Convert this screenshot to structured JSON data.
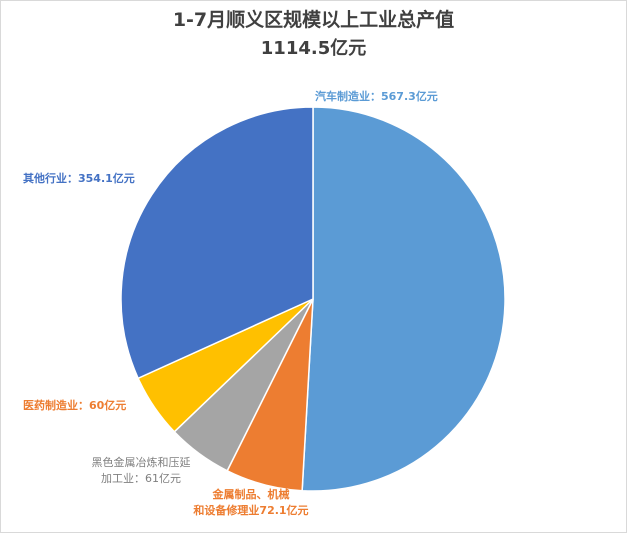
{
  "chart_data": {
    "type": "pie",
    "title": "1-7月顺义区规模以上工业总产值",
    "subtitle": "1114.5亿元",
    "unit": "亿元",
    "slices": [
      {
        "label_line1": "汽车制造业：567.3亿元",
        "label_line2": "",
        "value": 567.3,
        "color": "#5B9BD5",
        "label_color": "#5B9BD5"
      },
      {
        "label_line1": "金属制品、机械",
        "label_line2": "和设备修理业72.1亿元",
        "value": 72.1,
        "color": "#ED7D31",
        "label_color": "#ED7D31"
      },
      {
        "label_line1": "黑色金属冶炼和压延",
        "label_line2": "加工业：61亿元",
        "value": 61,
        "color": "#A5A5A5",
        "label_color": "#7F7F7F"
      },
      {
        "label_line1": "医药制造业：60亿元",
        "label_line2": "",
        "value": 60,
        "color": "#FFC000",
        "label_color": "#ED7D31"
      },
      {
        "label_line1": "其他行业：354.1亿元",
        "label_line2": "",
        "value": 354.1,
        "color": "#4472C4",
        "label_color": "#4472C4"
      }
    ]
  }
}
